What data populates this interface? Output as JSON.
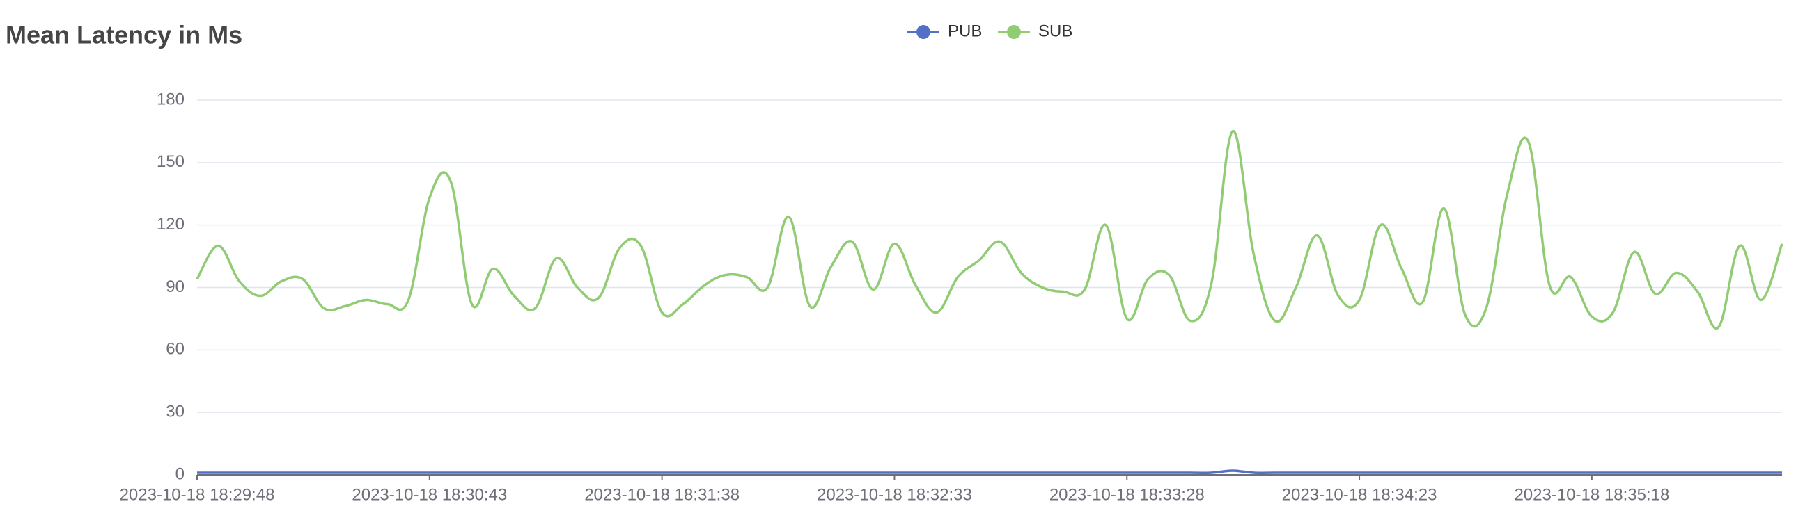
{
  "chart_data": {
    "type": "line",
    "title": "Mean Latency in Ms",
    "categories": [
      "2023-10-18 18:29:48",
      null,
      null,
      null,
      null,
      null,
      null,
      null,
      null,
      null,
      null,
      "2023-10-18 18:30:43",
      null,
      null,
      null,
      null,
      null,
      null,
      null,
      null,
      null,
      null,
      "2023-10-18 18:31:38",
      null,
      null,
      null,
      null,
      null,
      null,
      null,
      null,
      null,
      null,
      "2023-10-18 18:32:33",
      null,
      null,
      null,
      null,
      null,
      null,
      null,
      null,
      null,
      null,
      "2023-10-18 18:33:28",
      null,
      null,
      null,
      null,
      null,
      null,
      null,
      null,
      null,
      null,
      "2023-10-18 18:34:23",
      null,
      null,
      null,
      null,
      null,
      null,
      null,
      null,
      null,
      null,
      "2023-10-18 18:35:18",
      null,
      null,
      null,
      null,
      null,
      null,
      null,
      null,
      null
    ],
    "series": [
      {
        "name": "PUB",
        "color": "#5470c6",
        "values": [
          1,
          1,
          1,
          1,
          1,
          1,
          1,
          1,
          1,
          1,
          1,
          1,
          1,
          1,
          1,
          1,
          1,
          1,
          1,
          1,
          1,
          1,
          1,
          1,
          1,
          1,
          1,
          1,
          1,
          1,
          1,
          1,
          1,
          1,
          1,
          1,
          1,
          1,
          1,
          1,
          1,
          1,
          1,
          1,
          1,
          1,
          1,
          1,
          1,
          2,
          1,
          1,
          1,
          1,
          1,
          1,
          1,
          1,
          1,
          1,
          1,
          1,
          1,
          1,
          1,
          1,
          1,
          1,
          1,
          1,
          1,
          1,
          1,
          1,
          1,
          1
        ]
      },
      {
        "name": "SUB",
        "color": "#91cc75",
        "values": [
          94,
          110,
          93,
          86,
          93,
          94,
          80,
          81,
          84,
          82,
          84,
          133,
          141,
          82,
          99,
          86,
          80,
          104,
          90,
          85,
          109,
          110,
          78,
          82,
          91,
          96,
          95,
          90,
          124,
          81,
          100,
          112,
          89,
          111,
          91,
          78,
          95,
          103,
          112,
          97,
          90,
          88,
          89,
          120,
          75,
          94,
          96,
          74,
          92,
          165,
          106,
          74,
          90,
          115,
          86,
          84,
          120,
          99,
          83,
          128,
          77,
          80,
          135,
          160,
          91,
          95,
          76,
          78,
          107,
          87,
          97,
          88,
          71,
          110,
          84,
          111
        ]
      }
    ],
    "ylim": [
      0,
      180
    ],
    "yticks": [
      0,
      30,
      60,
      90,
      120,
      150,
      180
    ],
    "grid": true,
    "smooth": true,
    "legend": "top"
  }
}
